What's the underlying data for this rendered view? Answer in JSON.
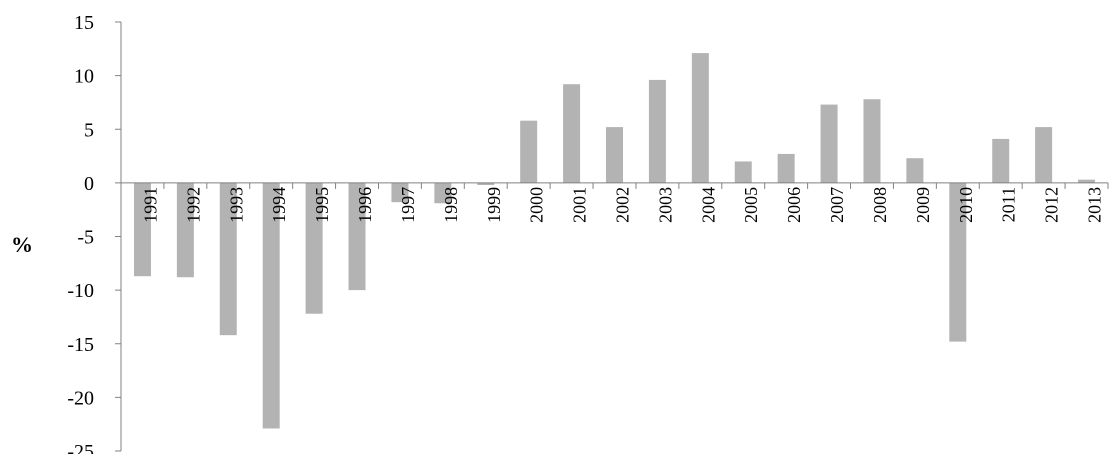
{
  "chart_data": {
    "type": "bar",
    "title": "",
    "xlabel": "",
    "ylabel": "%",
    "ylim": [
      -25,
      15
    ],
    "yticks": [
      15,
      10,
      5,
      0,
      -5,
      -10,
      -15,
      -20,
      -25
    ],
    "grid": false,
    "legend": "none",
    "bar_color": "#b3b3b3",
    "categories": [
      "1991",
      "1992",
      "1993",
      "1994",
      "1995",
      "1996",
      "1997",
      "1998",
      "1999",
      "2000",
      "2001",
      "2002",
      "2003",
      "2004",
      "2005",
      "2006",
      "2007",
      "2008",
      "2009",
      "2010",
      "2011",
      "2012",
      "2013"
    ],
    "values": [
      -8.7,
      -8.8,
      -14.2,
      -22.9,
      -12.2,
      -10.0,
      -1.8,
      -1.9,
      -0.2,
      5.8,
      9.2,
      5.2,
      9.6,
      12.1,
      2.0,
      2.7,
      7.3,
      7.8,
      2.3,
      -14.8,
      4.1,
      5.2,
      0.3
    ]
  }
}
